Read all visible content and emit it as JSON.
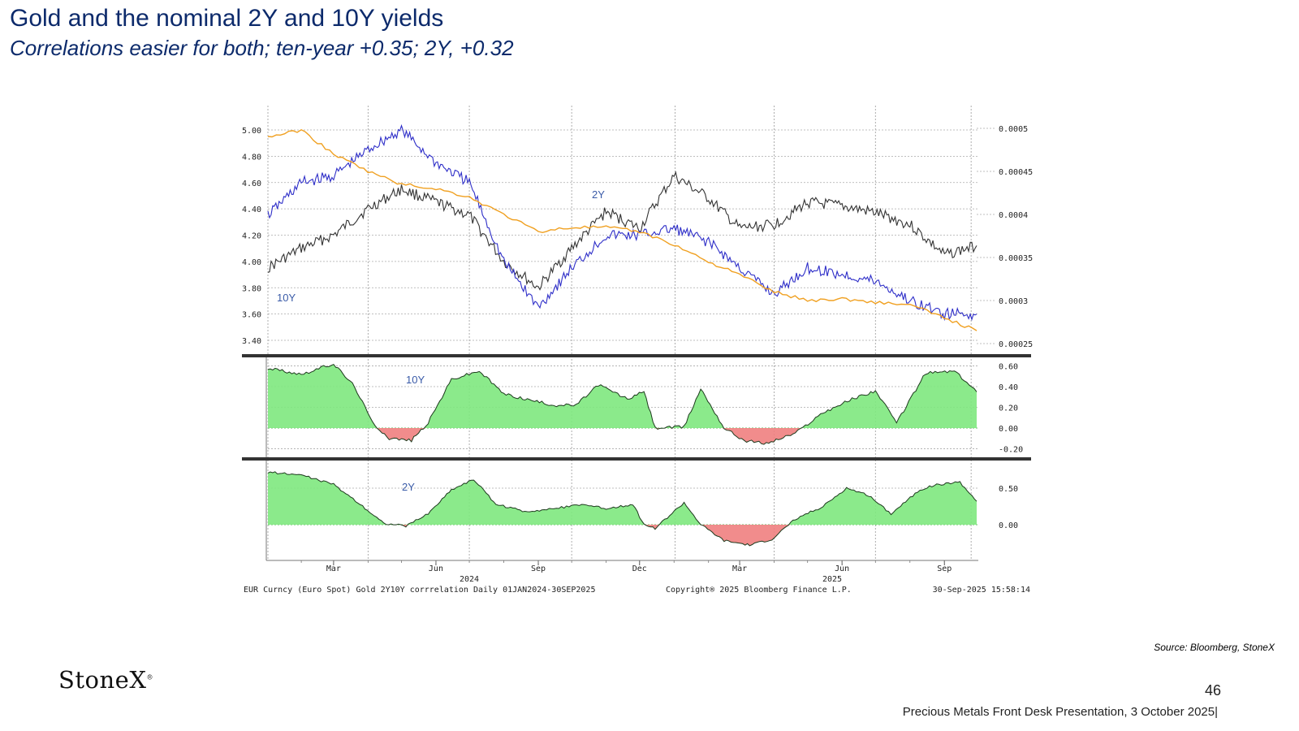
{
  "slide": {
    "title": "Gold and the nominal 2Y and 10Y yields",
    "subtitle": "Correlations easier for both;  ten-year +0.35;  2Y, +0.32",
    "source": "Source: Bloomberg, StoneX",
    "logo_text": "StoneX",
    "page_number": "46",
    "footer": "Precious Metals Front Desk Presentation, 3 October 2025|"
  },
  "chart_data": [
    {
      "type": "line",
      "x": [
        "2024-01-02",
        "2024-02-01",
        "2024-03-01",
        "2024-04-01",
        "2024-05-01",
        "2024-06-01",
        "2024-07-01",
        "2024-08-01",
        "2024-09-01",
        "2024-10-01",
        "2024-11-01",
        "2024-12-01",
        "2025-01-01",
        "2025-02-01",
        "2025-03-01",
        "2025-04-01",
        "2025-05-01",
        "2025-06-01",
        "2025-07-01",
        "2025-08-01",
        "2025-09-01",
        "2025-09-30"
      ],
      "series": [
        {
          "name": "10Y",
          "axis": "left",
          "color": "#333333",
          "values": [
            3.95,
            4.1,
            4.2,
            4.4,
            4.55,
            4.45,
            4.35,
            4.0,
            3.8,
            4.1,
            4.38,
            4.25,
            4.65,
            4.48,
            4.25,
            4.28,
            4.45,
            4.42,
            4.37,
            4.28,
            4.05,
            4.12
          ]
        },
        {
          "name": "2Y",
          "axis": "left",
          "color": "#2e2ec8",
          "values": [
            4.35,
            4.6,
            4.65,
            4.85,
            5.0,
            4.75,
            4.6,
            4.0,
            3.65,
            3.95,
            4.2,
            4.2,
            4.25,
            4.15,
            3.95,
            3.75,
            3.95,
            3.9,
            3.85,
            3.7,
            3.6,
            3.6
          ]
        },
        {
          "values": [
            0.00049,
            0.000498,
            0.00047,
            0.00045,
            0.000435,
            0.00043,
            0.00042,
            0.0004,
            0.00038,
            0.000385,
            0.000385,
            0.00038,
            0.000365,
            0.000345,
            0.00033,
            0.00031,
            0.0003,
            0.000302,
            0.000298,
            0.000295,
            0.00028,
            0.000265
          ],
          "axis": "right",
          "color": "#f0a020"
        }
      ],
      "left_ticks": [
        "5.00",
        "4.80",
        "4.60",
        "4.40",
        "4.20",
        "4.00",
        "3.80",
        "3.60",
        "3.40"
      ],
      "right_ticks": [
        "0.0005",
        "0.00045",
        "0.0004",
        "0.00035",
        "0.0003",
        "0.00025"
      ],
      "ylim": [
        3.35,
        5.05
      ],
      "y2lim": [
        0.00025,
        0.0005
      ],
      "labels": [
        "2Y",
        "10Y"
      ],
      "grid": true
    },
    {
      "type": "area",
      "label": "10Y",
      "x": [
        "2024-01-02",
        "2024-02-01",
        "2024-03-01",
        "2024-03-20",
        "2024-04-05",
        "2024-04-20",
        "2024-05-10",
        "2024-05-25",
        "2024-06-15",
        "2024-07-10",
        "2024-08-01",
        "2024-08-20",
        "2024-09-15",
        "2024-10-05",
        "2024-10-25",
        "2024-11-20",
        "2024-12-05",
        "2024-12-15",
        "2025-01-10",
        "2025-01-25",
        "2025-02-15",
        "2025-03-05",
        "2025-03-25",
        "2025-04-20",
        "2025-05-15",
        "2025-06-10",
        "2025-07-01",
        "2025-07-20",
        "2025-08-15",
        "2025-09-10",
        "2025-09-30"
      ],
      "values": [
        0.58,
        0.52,
        0.62,
        0.4,
        0.05,
        -0.1,
        -0.12,
        0.05,
        0.47,
        0.55,
        0.33,
        0.28,
        0.22,
        0.22,
        0.42,
        0.28,
        0.35,
        0.0,
        0.01,
        0.38,
        0.0,
        -0.12,
        -0.15,
        -0.05,
        0.15,
        0.28,
        0.36,
        0.05,
        0.53,
        0.55,
        0.35
      ],
      "y_ticks": [
        "0.60",
        "0.40",
        "0.20",
        "0.00",
        "-0.20"
      ],
      "ylim": [
        -0.22,
        0.62
      ],
      "positive_color": "#7ee87e",
      "negative_color": "#f08080"
    },
    {
      "type": "area",
      "label": "2Y",
      "x": [
        "2024-01-02",
        "2024-02-01",
        "2024-03-01",
        "2024-03-25",
        "2024-04-15",
        "2024-05-05",
        "2024-05-25",
        "2024-06-15",
        "2024-07-05",
        "2024-07-25",
        "2024-08-20",
        "2024-09-15",
        "2024-10-10",
        "2024-11-01",
        "2024-11-25",
        "2024-12-05",
        "2024-12-15",
        "2025-01-10",
        "2025-01-25",
        "2025-02-15",
        "2025-03-10",
        "2025-03-30",
        "2025-04-20",
        "2025-05-15",
        "2025-06-05",
        "2025-06-25",
        "2025-07-15",
        "2025-08-10",
        "2025-08-25",
        "2025-09-15",
        "2025-09-30"
      ],
      "values": [
        0.72,
        0.68,
        0.55,
        0.28,
        0.02,
        -0.02,
        0.15,
        0.48,
        0.62,
        0.28,
        0.18,
        0.22,
        0.28,
        0.22,
        0.28,
        0.0,
        -0.05,
        0.3,
        0.0,
        -0.22,
        -0.28,
        -0.2,
        0.08,
        0.25,
        0.5,
        0.4,
        0.15,
        0.48,
        0.55,
        0.58,
        0.32
      ],
      "y_ticks": [
        "0.50",
        "0.00"
      ],
      "ylim": [
        -0.4,
        0.8
      ],
      "positive_color": "#7ee87e",
      "negative_color": "#f08080"
    }
  ],
  "x_axis": {
    "month_ticks": [
      "Mar",
      "Jun",
      "Sep",
      "Dec",
      "Mar",
      "Jun",
      "Sep"
    ],
    "year_ticks": [
      "2024",
      "2025"
    ]
  },
  "chart_footer": {
    "left": "EUR Curncy (Euro Spot) Gold 2Y10Y corrrelation  Daily 01JAN2024-30SEP2025",
    "center": "Copyright® 2025 Bloomberg Finance L.P.",
    "right": "30-Sep-2025 15:58:14"
  }
}
